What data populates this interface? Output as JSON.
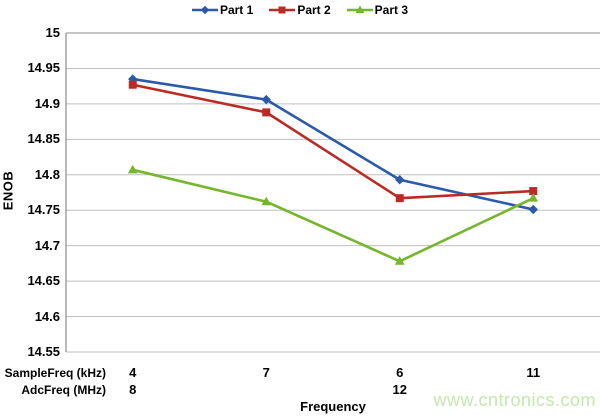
{
  "watermark": {
    "text": "www.cntronics.com",
    "color": "#c6e7b0"
  },
  "chart_data": {
    "type": "line",
    "title": "",
    "xlabel": "Frequency",
    "ylabel": "ENOB",
    "ylim": [
      14.55,
      15.0
    ],
    "yticks": [
      15,
      14.95,
      14.9,
      14.85,
      14.8,
      14.75,
      14.7,
      14.65,
      14.6,
      14.55
    ],
    "ytick_labels": [
      "15",
      "14.95",
      "14.9",
      "14.85",
      "14.8",
      "14.75",
      "14.7",
      "14.65",
      "14.6",
      "14.55"
    ],
    "grid": true,
    "legend_position": "top-center",
    "x_axis_rows": [
      {
        "label": "SampleFreq (kHz)",
        "values": [
          "4",
          "7",
          "6",
          "11"
        ]
      },
      {
        "label": "AdcFreq (MHz)",
        "values": [
          "8",
          "",
          "12",
          ""
        ]
      }
    ],
    "series": [
      {
        "name": "Part 1",
        "marker": "diamond",
        "color": "#2b5ba8",
        "values": [
          14.935,
          14.906,
          14.793,
          14.751
        ]
      },
      {
        "name": "Part 2",
        "marker": "square",
        "color": "#bb2b26",
        "values": [
          14.927,
          14.888,
          14.767,
          14.777
        ]
      },
      {
        "name": "Part 3",
        "marker": "triangle",
        "color": "#75b62c",
        "values": [
          14.807,
          14.762,
          14.678,
          14.767
        ]
      }
    ],
    "colors": {
      "gridline": "#bfbfbf",
      "axis_line": "#8c8c8c",
      "text": "#000000",
      "background": "#ffffff"
    }
  }
}
